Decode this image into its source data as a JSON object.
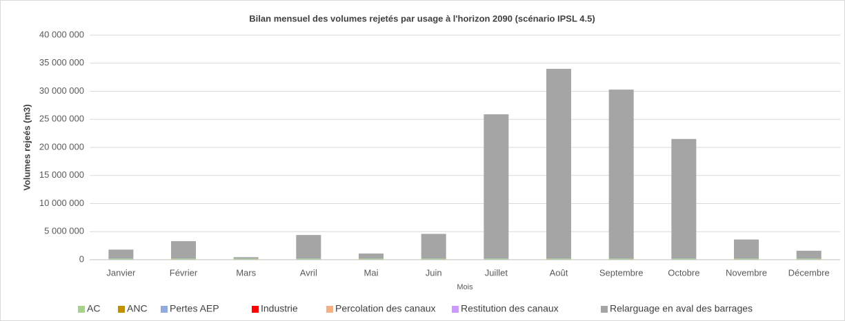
{
  "chart_data": {
    "type": "stacked_bar",
    "title": "Bilan mensuel des volumes rejetés par usage à l'horizon 2090 (scénario IPSL 4.5)",
    "x_label": "Mois",
    "y_label": "Volumes rejeés (m3)",
    "categories": [
      "Janvier",
      "Février",
      "Mars",
      "Avril",
      "Mai",
      "Juin",
      "Juillet",
      "Août",
      "Septembre",
      "Octobre",
      "Novembre",
      "Décembre"
    ],
    "series": [
      {
        "name": "AC",
        "color": "#a9d18e",
        "values": [
          200000,
          200000,
          200000,
          200000,
          200000,
          200000,
          200000,
          200000,
          200000,
          200000,
          200000,
          200000
        ]
      },
      {
        "name": "ANC",
        "color": "#bf9000",
        "values": [
          0,
          0,
          0,
          0,
          0,
          0,
          0,
          0,
          0,
          0,
          0,
          0
        ]
      },
      {
        "name": "Pertes AEP",
        "color": "#8faadc",
        "values": [
          0,
          0,
          0,
          0,
          0,
          0,
          0,
          0,
          0,
          0,
          0,
          0
        ]
      },
      {
        "name": "Industrie",
        "color": "#ff0000",
        "values": [
          0,
          0,
          0,
          0,
          0,
          0,
          0,
          0,
          0,
          0,
          0,
          0
        ]
      },
      {
        "name": "Percolation des canaux",
        "color": "#f4b183",
        "values": [
          0,
          0,
          0,
          0,
          0,
          0,
          0,
          0,
          0,
          0,
          0,
          0
        ]
      },
      {
        "name": "Restitution des canaux",
        "color": "#cc99ff",
        "values": [
          0,
          0,
          0,
          0,
          0,
          0,
          0,
          0,
          0,
          0,
          0,
          0
        ]
      },
      {
        "name": "Relarguage en aval des barrages",
        "color": "#a5a5a5",
        "values": [
          1600000,
          3100000,
          250000,
          4200000,
          900000,
          4400000,
          25700000,
          33800000,
          30100000,
          21300000,
          3400000,
          1400000
        ]
      }
    ],
    "ylim": [
      0,
      40000000
    ],
    "yticks": [
      0,
      {
        "value": 5000000,
        "label": "5 000 000"
      },
      {
        "value": 10000000,
        "label": "10 000 000"
      },
      {
        "value": 15000000,
        "label": "15 000 000"
      },
      {
        "value": 20000000,
        "label": "20 000 000"
      },
      {
        "value": 25000000,
        "label": "25 000 000"
      },
      {
        "value": 30000000,
        "label": "30 000 000"
      },
      {
        "value": 35000000,
        "label": "35 000 000"
      },
      {
        "value": 40000000,
        "label": "40 000 000"
      }
    ],
    "grid": true,
    "legend": "bottom"
  }
}
